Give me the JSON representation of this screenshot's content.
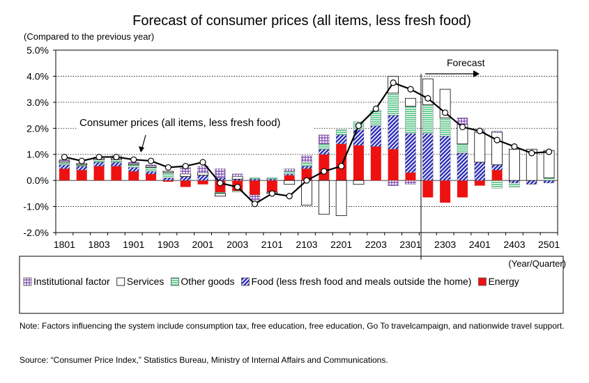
{
  "chart_data": {
    "type": "bar",
    "title": "Forecast of consumer prices (all items, less fresh food)",
    "ylabel": "(Compared to the previous year)",
    "xlabel": "(Year/Quarter)",
    "ylim": [
      -2.0,
      5.0
    ],
    "yticks": [
      "5.0%",
      "4.0%",
      "3.0%",
      "2.0%",
      "1.0%",
      "0.0%",
      "-1.0%",
      "-2.0%"
    ],
    "ytick_values": [
      5,
      4,
      3,
      2,
      1,
      0,
      -1,
      -2
    ],
    "xtick_labels": [
      "1801",
      "1803",
      "1901",
      "1903",
      "2001",
      "2003",
      "2101",
      "2103",
      "2201",
      "2203",
      "2301",
      "2303",
      "2401",
      "2403",
      "2501"
    ],
    "grid": true,
    "forecast_start": "2302",
    "forecast_label": "Forecast",
    "line_label": "Consumer prices (all items, less fresh food)",
    "legend_position": "bottom",
    "categories": [
      "1801",
      "1802",
      "1803",
      "1804",
      "1901",
      "1902",
      "1903",
      "1904",
      "2001",
      "2002",
      "2003",
      "2004",
      "2101",
      "2102",
      "2103",
      "2104",
      "2201",
      "2202",
      "2203",
      "2204",
      "2301",
      "2302",
      "2303",
      "2304",
      "2401",
      "2402",
      "2403",
      "2404",
      "2501"
    ],
    "series": [
      {
        "name": "Institutional factor",
        "color": "#9966cc",
        "values": [
          0.05,
          0.0,
          0.05,
          0.1,
          0.05,
          0.05,
          0.0,
          0.25,
          0.25,
          0.35,
          0.1,
          -0.2,
          0.0,
          0.1,
          0.25,
          0.35,
          0.0,
          0.0,
          0.0,
          -0.2,
          -0.15,
          0.0,
          0.0,
          0.25,
          0.1,
          0.05,
          0.0,
          0.0,
          0.0
        ]
      },
      {
        "name": "Services",
        "color": "#ffffff",
        "values": [
          0.05,
          0.05,
          0.05,
          0.05,
          0.05,
          0.05,
          0.05,
          0.1,
          0.1,
          -0.1,
          0.1,
          0.0,
          -0.05,
          -0.15,
          -0.95,
          -1.3,
          -1.35,
          -0.15,
          0.0,
          0.65,
          0.3,
          1.0,
          1.1,
          0.75,
          1.15,
          1.25,
          1.2,
          1.2,
          1.05
        ]
      },
      {
        "name": "Other goods",
        "color": "#99ddbb",
        "values": [
          0.1,
          0.05,
          0.1,
          0.1,
          0.1,
          0.15,
          0.2,
          0.0,
          0.0,
          -0.05,
          -0.05,
          0.05,
          0.05,
          0.1,
          0.15,
          0.2,
          0.2,
          0.3,
          0.6,
          0.85,
          1.05,
          1.1,
          0.7,
          0.35,
          0.0,
          -0.3,
          -0.15,
          0.0,
          0.1
        ]
      },
      {
        "name": "Food (less fresh food and meals outside the home)",
        "color": "#6666cc",
        "values": [
          0.15,
          0.15,
          0.15,
          0.15,
          0.15,
          0.1,
          0.1,
          0.15,
          0.2,
          0.1,
          0.05,
          0.05,
          0.05,
          0.05,
          0.1,
          0.2,
          0.35,
          0.6,
          0.8,
          1.3,
          1.5,
          1.8,
          1.7,
          1.05,
          0.7,
          0.2,
          -0.1,
          -0.15,
          -0.1
        ]
      },
      {
        "name": "Energy",
        "color": "#ee1111",
        "values": [
          0.45,
          0.4,
          0.55,
          0.55,
          0.35,
          0.25,
          -0.05,
          -0.25,
          -0.15,
          -0.45,
          -0.4,
          -0.55,
          -0.45,
          0.2,
          0.45,
          1.0,
          1.4,
          1.35,
          1.3,
          1.2,
          0.3,
          -0.65,
          -0.85,
          -0.65,
          -0.2,
          0.4,
          0.0,
          0.0,
          0.0
        ]
      }
    ],
    "line": {
      "name": "Consumer prices (all items, less fresh food)",
      "values": [
        0.9,
        0.75,
        0.9,
        0.9,
        0.8,
        0.75,
        0.5,
        0.55,
        0.7,
        -0.1,
        -0.25,
        -0.9,
        -0.5,
        -0.6,
        0.0,
        0.35,
        0.55,
        2.1,
        2.75,
        3.75,
        3.5,
        3.15,
        2.6,
        2.05,
        1.9,
        1.55,
        1.3,
        1.05,
        1.1
      ]
    }
  },
  "note": "Note: Factors influencing the system include consumption tax, free education, free education, Go To travelcampaign, and nationwide travel support.",
  "source": "Source: “Consumer Price Index,” Statistics Bureau, Ministry of Internal Affairs and Communications."
}
